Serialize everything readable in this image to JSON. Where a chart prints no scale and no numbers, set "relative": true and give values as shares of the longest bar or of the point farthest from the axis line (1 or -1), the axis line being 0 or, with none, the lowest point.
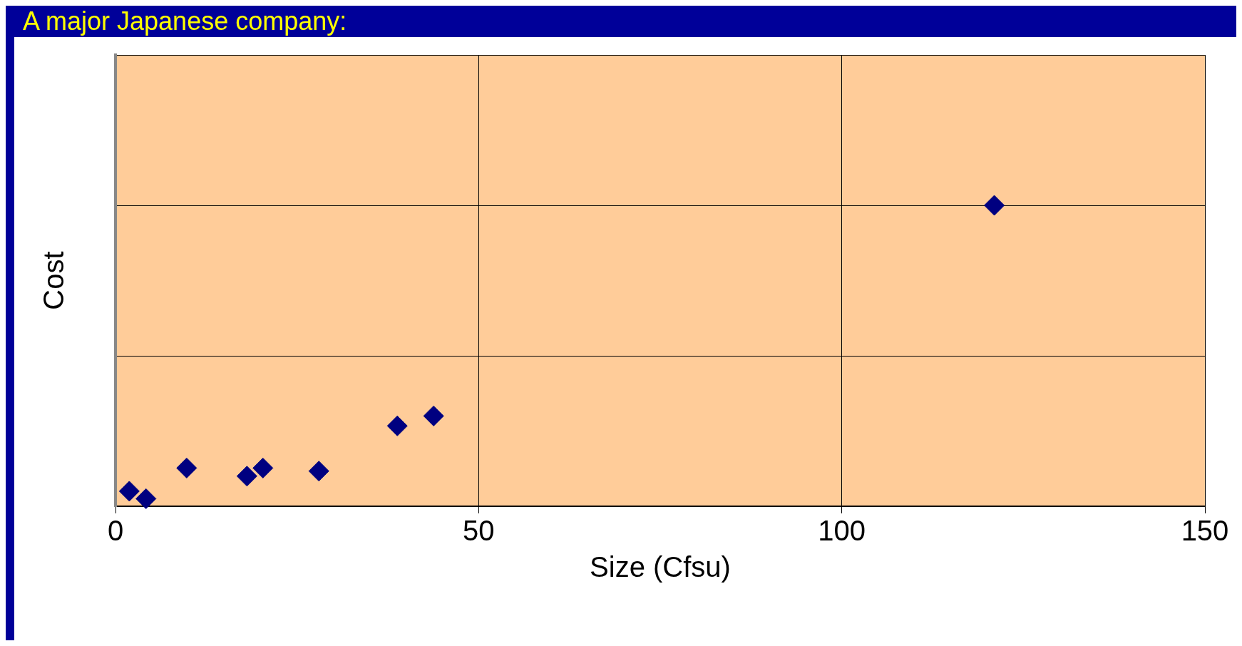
{
  "chart_data": {
    "type": "scatter",
    "title": "A major Japanese company:",
    "xlabel": "Size (Cfsu)",
    "ylabel": "Cost",
    "relative": true,
    "x": [
      1.9,
      4.2,
      9.8,
      18.1,
      20.3,
      28.0,
      38.8,
      43.8,
      121
    ],
    "values": [
      0.05,
      0.025,
      0.127,
      0.1,
      0.127,
      0.117,
      0.267,
      0.3,
      1
    ],
    "color": "#000080",
    "marker": "diamond",
    "xlim": [
      0,
      150
    ],
    "xticks": [
      0,
      50,
      100,
      150
    ],
    "grid": true,
    "legend": false
  }
}
